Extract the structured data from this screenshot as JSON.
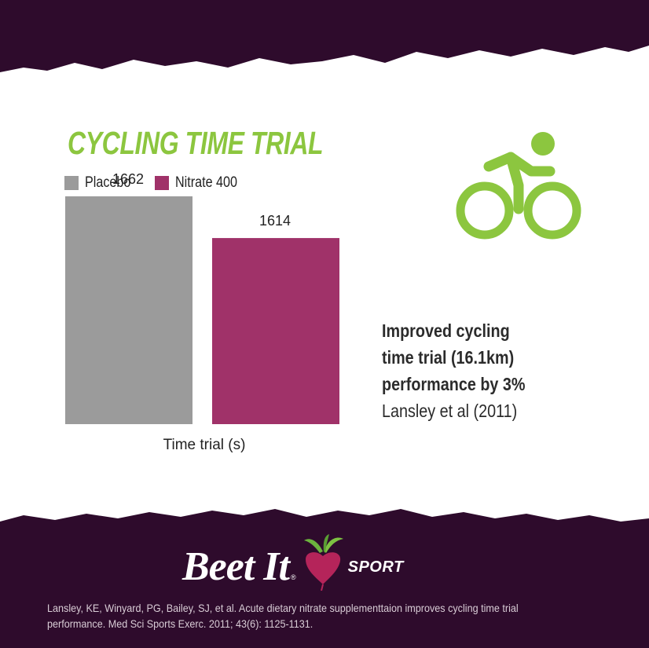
{
  "chart_data": {
    "type": "bar",
    "title": "CYCLING TIME TRIAL",
    "categories": [
      "Placebo",
      "Nitrate 400"
    ],
    "values": [
      1662,
      1614
    ],
    "value_labels": [
      "1662",
      "1614"
    ],
    "xlabel": "Time trial (s)",
    "ylabel": "",
    "ylim": [
      1400,
      1680
    ],
    "grid": false,
    "legend": "top-left",
    "colors": [
      "#9b9b9b",
      "#a03269"
    ]
  },
  "legend": {
    "placebo": "Placebo",
    "nitrate": "Nitrate 400"
  },
  "note": {
    "line1": "Improved cycling",
    "line2": "time trial (16.1km)",
    "line3": "performance by 3%",
    "source": "Lansley et al (2011)"
  },
  "brand": {
    "name": "Beet It",
    "reg": "®",
    "sub": "SPORT"
  },
  "citation": "Lansley, KE, Winyard, PG, Bailey, SJ, et al. Acute dietary nitrate supplementtaion improves cycling time trial performance. Med Sci Sports Exerc. 2011; 43(6): 1125-1131.",
  "icons": {
    "cyclist": "cyclist-icon",
    "beet": "beet-icon"
  },
  "colors": {
    "background": "#2e0b2c",
    "card": "#ffffff",
    "accent_green": "#8cc63f",
    "placebo": "#9b9b9b",
    "nitrate": "#a03269"
  }
}
